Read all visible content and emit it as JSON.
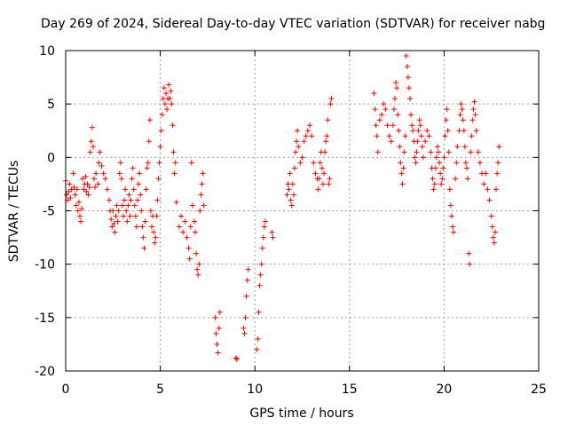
{
  "chart_data": {
    "type": "scatter",
    "title": "Day 269 of 2024, Sidereal Day-to-day VTEC variation (SDTVAR) for receiver nabg",
    "xlabel": "GPS time / hours",
    "ylabel": "SDTVAR / TECUs",
    "xlim": [
      0,
      25
    ],
    "ylim": [
      -20,
      10
    ],
    "xticks": [
      0,
      5,
      10,
      15,
      20,
      25
    ],
    "yticks": [
      -20,
      -15,
      -10,
      -5,
      0,
      5,
      10
    ],
    "xtick_labels": [
      "0",
      "5",
      "10",
      "15",
      "20",
      "25"
    ],
    "ytick_labels": [
      "-20",
      "-15",
      "-10",
      "-5",
      "0",
      "5",
      "10"
    ],
    "grid": true,
    "marker": "+",
    "series": [
      {
        "name": "SDTVAR",
        "color": "#ff0000",
        "points": [
          [
            0.0,
            -2.2
          ],
          [
            0.05,
            -3.5
          ],
          [
            0.1,
            -4.0
          ],
          [
            0.15,
            -3.2
          ],
          [
            0.2,
            -2.5
          ],
          [
            0.25,
            -3.8
          ],
          [
            0.3,
            -3.0
          ],
          [
            0.4,
            -1.5
          ],
          [
            0.45,
            -2.8
          ],
          [
            0.5,
            -3.5
          ],
          [
            0.55,
            -4.5
          ],
          [
            0.6,
            -3.0
          ],
          [
            0.65,
            -5.0
          ],
          [
            0.7,
            -4.2
          ],
          [
            0.75,
            -5.5
          ],
          [
            0.8,
            -6.0
          ],
          [
            0.85,
            -4.8
          ],
          [
            0.9,
            -2.0
          ],
          [
            0.95,
            -3.0
          ],
          [
            1.0,
            -2.5
          ],
          [
            1.05,
            -1.8
          ],
          [
            1.1,
            -3.2
          ],
          [
            1.15,
            -2.5
          ],
          [
            1.2,
            -3.5
          ],
          [
            1.25,
            -2.8
          ],
          [
            1.3,
            0.5
          ],
          [
            1.35,
            1.5
          ],
          [
            1.4,
            2.8
          ],
          [
            1.45,
            1.0
          ],
          [
            1.5,
            -2.0
          ],
          [
            1.55,
            -2.8
          ],
          [
            1.6,
            -1.5
          ],
          [
            1.7,
            -2.5
          ],
          [
            1.75,
            -0.5
          ],
          [
            1.8,
            0.5
          ],
          [
            1.9,
            -0.8
          ],
          [
            2.0,
            -1.5
          ],
          [
            2.1,
            -2.0
          ],
          [
            2.2,
            -3.0
          ],
          [
            2.3,
            -4.0
          ],
          [
            2.35,
            -5.0
          ],
          [
            2.4,
            -5.8
          ],
          [
            2.45,
            -6.5
          ],
          [
            2.5,
            -5.0
          ],
          [
            2.55,
            -6.2
          ],
          [
            2.6,
            -7.0
          ],
          [
            2.65,
            -5.5
          ],
          [
            2.7,
            -4.5
          ],
          [
            2.75,
            -6.0
          ],
          [
            2.8,
            -5.0
          ],
          [
            2.85,
            -1.5
          ],
          [
            2.9,
            -0.5
          ],
          [
            2.95,
            -2.0
          ],
          [
            3.0,
            -4.5
          ],
          [
            3.05,
            -5.5
          ],
          [
            3.1,
            -4.0
          ],
          [
            3.15,
            -3.0
          ],
          [
            3.2,
            -5.0
          ],
          [
            3.25,
            -6.0
          ],
          [
            3.3,
            -4.5
          ],
          [
            3.35,
            -3.5
          ],
          [
            3.4,
            -5.5
          ],
          [
            3.45,
            -4.0
          ],
          [
            3.5,
            -2.0
          ],
          [
            3.55,
            -1.0
          ],
          [
            3.6,
            -3.0
          ],
          [
            3.65,
            -4.5
          ],
          [
            3.7,
            -5.5
          ],
          [
            3.75,
            -6.5
          ],
          [
            3.8,
            -4.0
          ],
          [
            3.85,
            -2.5
          ],
          [
            3.9,
            -1.5
          ],
          [
            3.95,
            -3.5
          ],
          [
            4.0,
            -5.0
          ],
          [
            4.05,
            -6.5
          ],
          [
            4.1,
            -7.5
          ],
          [
            4.15,
            -8.5
          ],
          [
            4.2,
            -6.0
          ],
          [
            4.25,
            -3.0
          ],
          [
            4.3,
            -1.0
          ],
          [
            4.35,
            -0.5
          ],
          [
            4.4,
            1.5
          ],
          [
            4.45,
            3.5
          ],
          [
            4.5,
            -5.0
          ],
          [
            4.55,
            -6.5
          ],
          [
            4.6,
            -5.5
          ],
          [
            4.65,
            -7.0
          ],
          [
            4.7,
            -8.0
          ],
          [
            4.75,
            -7.5
          ],
          [
            4.8,
            -5.5
          ],
          [
            4.85,
            -4.0
          ],
          [
            4.9,
            -2.0
          ],
          [
            4.95,
            -0.5
          ],
          [
            5.0,
            1.0
          ],
          [
            5.05,
            2.5
          ],
          [
            5.1,
            4.0
          ],
          [
            5.15,
            5.5
          ],
          [
            5.2,
            6.5
          ],
          [
            5.25,
            5.0
          ],
          [
            5.3,
            6.0
          ],
          [
            5.35,
            4.5
          ],
          [
            5.4,
            5.5
          ],
          [
            5.45,
            6.8
          ],
          [
            5.5,
            5.5
          ],
          [
            5.55,
            6.2
          ],
          [
            5.6,
            5.0
          ],
          [
            5.65,
            3.0
          ],
          [
            5.7,
            0.5
          ],
          [
            5.75,
            -1.5
          ],
          [
            5.8,
            -0.5
          ],
          [
            5.85,
            -4.2
          ],
          [
            6.0,
            -6.5
          ],
          [
            6.1,
            -5.5
          ],
          [
            6.2,
            -7.0
          ],
          [
            6.3,
            -6.0
          ],
          [
            6.4,
            -7.5
          ],
          [
            6.5,
            -8.5
          ],
          [
            6.55,
            -9.5
          ],
          [
            6.6,
            -6.5
          ],
          [
            6.65,
            -0.5
          ],
          [
            6.7,
            -4.5
          ],
          [
            6.8,
            -6.0
          ],
          [
            6.85,
            -7.0
          ],
          [
            6.9,
            -9.0
          ],
          [
            6.95,
            -10.5
          ],
          [
            7.0,
            -11.0
          ],
          [
            7.05,
            -10.0
          ],
          [
            7.1,
            -5.0
          ],
          [
            7.15,
            -3.5
          ],
          [
            7.2,
            -2.5
          ],
          [
            7.25,
            -1.5
          ],
          [
            7.3,
            -4.5
          ],
          [
            7.9,
            -15.0
          ],
          [
            7.95,
            -16.5
          ],
          [
            8.0,
            -17.5
          ],
          [
            8.05,
            -18.3
          ],
          [
            8.1,
            -16.0
          ],
          [
            8.15,
            -14.5
          ],
          [
            9.0,
            -18.8
          ],
          [
            9.05,
            -18.9
          ],
          [
            9.4,
            -16.0
          ],
          [
            9.45,
            -16.5
          ],
          [
            9.5,
            -15.0
          ],
          [
            9.55,
            -13.0
          ],
          [
            9.6,
            -11.5
          ],
          [
            9.65,
            -10.5
          ],
          [
            10.1,
            -18.0
          ],
          [
            10.15,
            -17.0
          ],
          [
            10.2,
            -14.5
          ],
          [
            10.25,
            -12.0
          ],
          [
            10.3,
            -11.0
          ],
          [
            10.35,
            -10.0
          ],
          [
            10.4,
            -8.5
          ],
          [
            10.45,
            -7.5
          ],
          [
            10.5,
            -6.5
          ],
          [
            10.55,
            -6.0
          ],
          [
            10.9,
            -7.0
          ],
          [
            10.95,
            -7.5
          ],
          [
            11.7,
            -3.5
          ],
          [
            11.75,
            -2.5
          ],
          [
            11.8,
            -3.0
          ],
          [
            11.85,
            -1.5
          ],
          [
            11.9,
            -4.0
          ],
          [
            11.95,
            -4.5
          ],
          [
            12.0,
            -2.5
          ],
          [
            12.05,
            -3.5
          ],
          [
            12.1,
            -1.0
          ],
          [
            12.15,
            0.5
          ],
          [
            12.2,
            1.5
          ],
          [
            12.25,
            2.5
          ],
          [
            12.3,
            1.0
          ],
          [
            12.4,
            -0.5
          ],
          [
            12.5,
            0.0
          ],
          [
            12.6,
            1.5
          ],
          [
            12.7,
            2.0
          ],
          [
            12.8,
            2.5
          ],
          [
            12.9,
            3.0
          ],
          [
            13.0,
            2.0
          ],
          [
            13.1,
            -0.5
          ],
          [
            13.2,
            -1.5
          ],
          [
            13.3,
            -2.0
          ],
          [
            13.35,
            -3.0
          ],
          [
            13.4,
            -2.0
          ],
          [
            13.45,
            -0.5
          ],
          [
            13.5,
            0.5
          ],
          [
            13.55,
            -1.0
          ],
          [
            13.6,
            -2.5
          ],
          [
            13.65,
            -1.5
          ],
          [
            13.7,
            0.5
          ],
          [
            13.75,
            1.5
          ],
          [
            13.8,
            2.0
          ],
          [
            13.85,
            3.5
          ],
          [
            13.9,
            -2.5
          ],
          [
            13.95,
            -2.0
          ],
          [
            14.0,
            5.0
          ],
          [
            14.05,
            5.5
          ],
          [
            16.3,
            6.0
          ],
          [
            16.35,
            4.5
          ],
          [
            16.4,
            3.0
          ],
          [
            16.45,
            2.0
          ],
          [
            16.5,
            0.5
          ],
          [
            16.6,
            3.5
          ],
          [
            16.7,
            4.0
          ],
          [
            16.8,
            5.0
          ],
          [
            16.9,
            4.5
          ],
          [
            17.0,
            3.0
          ],
          [
            17.1,
            2.0
          ],
          [
            17.2,
            1.5
          ],
          [
            17.3,
            3.0
          ],
          [
            17.35,
            4.5
          ],
          [
            17.4,
            5.5
          ],
          [
            17.45,
            7.0
          ],
          [
            17.5,
            6.5
          ],
          [
            17.55,
            4.0
          ],
          [
            17.6,
            2.5
          ],
          [
            17.65,
            1.0
          ],
          [
            17.7,
            -0.5
          ],
          [
            17.75,
            -1.5
          ],
          [
            17.8,
            -2.5
          ],
          [
            17.85,
            -1.0
          ],
          [
            17.9,
            0.5
          ],
          [
            17.95,
            2.0
          ],
          [
            18.0,
            9.5
          ],
          [
            18.05,
            8.5
          ],
          [
            18.1,
            7.5
          ],
          [
            18.15,
            6.5
          ],
          [
            18.2,
            5.5
          ],
          [
            18.25,
            4.0
          ],
          [
            18.3,
            3.0
          ],
          [
            18.35,
            2.5
          ],
          [
            18.4,
            1.5
          ],
          [
            18.45,
            0.0
          ],
          [
            18.5,
            -0.5
          ],
          [
            18.55,
            0.5
          ],
          [
            18.6,
            1.5
          ],
          [
            18.65,
            2.5
          ],
          [
            18.7,
            3.5
          ],
          [
            18.75,
            3.0
          ],
          [
            18.8,
            2.0
          ],
          [
            18.85,
            1.0
          ],
          [
            18.9,
            0.0
          ],
          [
            19.0,
            1.5
          ],
          [
            19.1,
            2.5
          ],
          [
            19.2,
            2.0
          ],
          [
            19.3,
            0.5
          ],
          [
            19.35,
            -1.0
          ],
          [
            19.4,
            -2.0
          ],
          [
            19.45,
            -3.0
          ],
          [
            19.5,
            -2.5
          ],
          [
            19.55,
            -1.0
          ],
          [
            19.6,
            0.0
          ],
          [
            19.65,
            1.0
          ],
          [
            19.7,
            0.5
          ],
          [
            19.75,
            -0.5
          ],
          [
            19.8,
            -1.5
          ],
          [
            19.85,
            -2.5
          ],
          [
            19.9,
            -2.0
          ],
          [
            19.95,
            -1.0
          ],
          [
            20.0,
            0.0
          ],
          [
            20.05,
            2.0
          ],
          [
            20.1,
            3.5
          ],
          [
            20.15,
            4.5
          ],
          [
            20.2,
            2.5
          ],
          [
            20.25,
            0.5
          ],
          [
            20.3,
            -3.0
          ],
          [
            20.35,
            -4.5
          ],
          [
            20.4,
            -5.5
          ],
          [
            20.45,
            -6.5
          ],
          [
            20.5,
            -7.0
          ],
          [
            20.6,
            -2.0
          ],
          [
            20.65,
            -0.5
          ],
          [
            20.7,
            1.0
          ],
          [
            20.8,
            2.5
          ],
          [
            20.85,
            4.0
          ],
          [
            20.9,
            5.0
          ],
          [
            20.95,
            4.5
          ],
          [
            21.0,
            3.5
          ],
          [
            21.05,
            2.5
          ],
          [
            21.1,
            1.0
          ],
          [
            21.15,
            -0.5
          ],
          [
            21.2,
            -1.0
          ],
          [
            21.25,
            -2.0
          ],
          [
            21.3,
            -9.0
          ],
          [
            21.35,
            -10.0
          ],
          [
            21.4,
            0.5
          ],
          [
            21.45,
            2.0
          ],
          [
            21.5,
            3.5
          ],
          [
            21.55,
            4.5
          ],
          [
            21.6,
            5.2
          ],
          [
            21.65,
            4.0
          ],
          [
            21.7,
            2.5
          ],
          [
            21.8,
            0.5
          ],
          [
            21.9,
            -0.5
          ],
          [
            22.0,
            -1.5
          ],
          [
            22.1,
            -2.5
          ],
          [
            22.2,
            -1.5
          ],
          [
            22.3,
            -3.0
          ],
          [
            22.4,
            -4.0
          ],
          [
            22.5,
            -5.5
          ],
          [
            22.55,
            -6.5
          ],
          [
            22.6,
            -7.5
          ],
          [
            22.65,
            -8.0
          ],
          [
            22.7,
            -7.0
          ],
          [
            22.75,
            -3.0
          ],
          [
            22.8,
            -1.5
          ],
          [
            22.85,
            -0.5
          ],
          [
            22.9,
            1.0
          ]
        ]
      }
    ]
  }
}
